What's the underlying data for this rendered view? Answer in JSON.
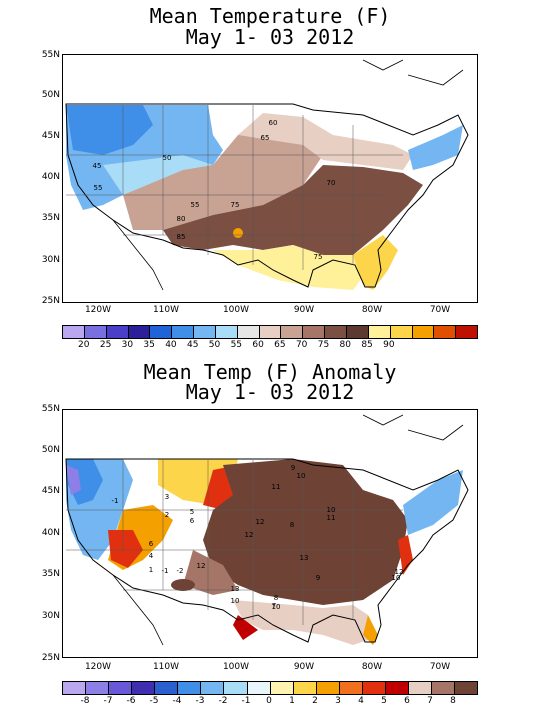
{
  "panels": [
    {
      "title_line1": "Mean Temperature (F)",
      "title_line2": "May 1- 03 2012",
      "lat_labels": [
        "55N",
        "50N",
        "45N",
        "40N",
        "35N",
        "30N",
        "25N"
      ],
      "lon_labels": [
        "120W",
        "110W",
        "100W",
        "90W",
        "80W",
        "70W"
      ],
      "colorbar_labels": [
        "20",
        "25",
        "30",
        "35",
        "40",
        "45",
        "50",
        "55",
        "60",
        "65",
        "70",
        "75",
        "80",
        "85",
        "90"
      ],
      "colorbar_colors": [
        "#b9a8f0",
        "#7a6fe0",
        "#4a3fc8",
        "#2b1f9a",
        "#1e63d8",
        "#3f8ee8",
        "#74b6f2",
        "#a9dcf7",
        "#e6e6e6",
        "#e8cfc3",
        "#c8a293",
        "#a57667",
        "#7b4f41",
        "#5c3a2f",
        "#fff09a",
        "#fdd54a",
        "#f4a000",
        "#e05000",
        "#c01000"
      ],
      "contour_labels": [
        "60",
        "65",
        "50",
        "45",
        "55",
        "70",
        "55",
        "80",
        "75",
        "85",
        "75"
      ]
    },
    {
      "title_line1": "Mean Temp (F) Anomaly",
      "title_line2": "May 1- 03 2012",
      "lat_labels": [
        "55N",
        "50N",
        "45N",
        "40N",
        "35N",
        "30N",
        "25N"
      ],
      "lon_labels": [
        "120W",
        "110W",
        "100W",
        "90W",
        "80W",
        "70W"
      ],
      "colorbar_labels": [
        "-8",
        "-7",
        "-6",
        "-5",
        "-4",
        "-3",
        "-2",
        "-1",
        "0",
        "1",
        "2",
        "3",
        "4",
        "5",
        "6",
        "7",
        "8"
      ],
      "colorbar_colors": [
        "#b9a8f0",
        "#8e7fe8",
        "#6a58d8",
        "#3f2fb0",
        "#2a5fd0",
        "#3f8ee8",
        "#74b6f2",
        "#a9dcf7",
        "#e8f6fb",
        "#fff3b0",
        "#fdd54a",
        "#f4a000",
        "#f07020",
        "#e03010",
        "#c00000",
        "#e8cfc3",
        "#a57667",
        "#6e4335"
      ],
      "contour_labels": [
        "9",
        "10",
        "11",
        "-1",
        "3",
        "2",
        "5",
        "6",
        "12",
        "8",
        "10",
        "11",
        "12",
        "6",
        "4",
        "1",
        "-1",
        "-2",
        "13",
        "13",
        "10",
        "9",
        "12",
        "10",
        "12",
        "8",
        "10",
        "7"
      ]
    }
  ]
}
